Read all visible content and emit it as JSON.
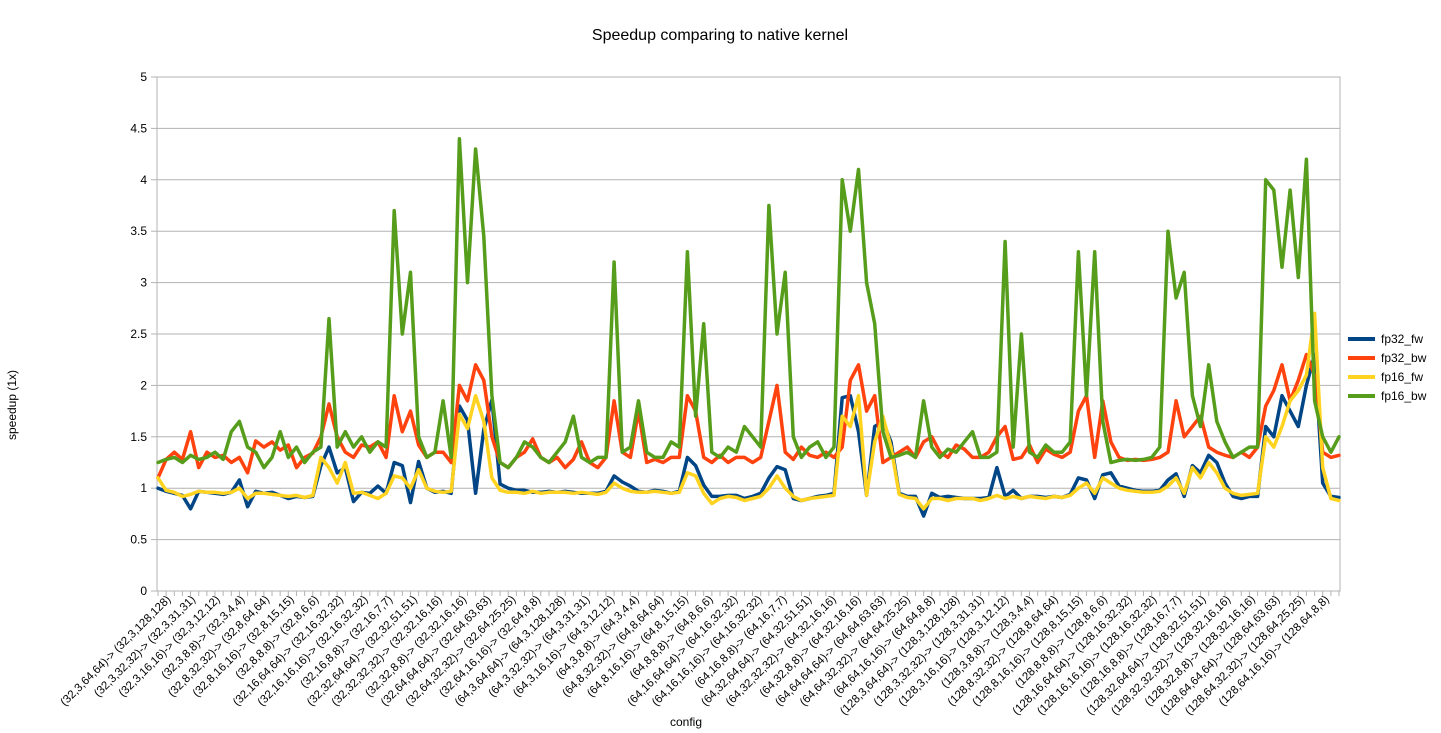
{
  "chart_data": {
    "type": "line",
    "title": "Speedup comparing to native kernel",
    "xlabel": "config",
    "ylabel": "speedup (1x)",
    "ylim": [
      0,
      5
    ],
    "yticks": [
      "0",
      "0.5",
      "1",
      "1.5",
      "2",
      "2.5",
      "3",
      "3.5",
      "4",
      "4.5",
      "5"
    ],
    "grid": "horizontal",
    "legend_position": "right",
    "x_tick_labels": [
      "(32,3,64,64)-> (32,3,128,128)",
      "(32,3,32,32)-> (32,3,31,31)",
      "(32,3,16,16)-> (32,3,12,12)",
      "(32,3,8,8)-> (32,3,4,4)",
      "(32,8,32,32)-> (32,8,64,64)",
      "(32,8,16,16)-> (32,8,15,15)",
      "(32,8,8,8)-> (32,8,6,6)",
      "(32,16,64,64)-> (32,16,32,32)",
      "(32,16,16,16)-> (32,16,32,32)",
      "(32,16,8,8)-> (32,16,7,7)",
      "(32,32,64,64)-> (32,32,51,51)",
      "(32,32,32,32)-> (32,32,16,16)",
      "(32,32,8,8)-> (32,32,16,16)",
      "(32,64,64,64)-> (32,64,63,63)",
      "(32,64,32,32)-> (32,64,25,25)",
      "(32,64,16,16)-> (32,64,8,8)",
      "(64,3,64,64)-> (64,3,128,128)",
      "(64,3,32,32)-> (64,3,31,31)",
      "(64,3,16,16)-> (64,3,12,12)",
      "(64,3,8,8)-> (64,3,4,4)",
      "(64,8,32,32)-> (64,8,64,64)",
      "(64,8,16,16)-> (64,8,15,15)",
      "(64,8,8,8)-> (64,8,6,6)",
      "(64,16,64,64)-> (64,16,32,32)",
      "(64,16,16,16)-> (64,16,32,32)",
      "(64,16,8,8)-> (64,16,7,7)",
      "(64,32,64,64)-> (64,32,51,51)",
      "(64,32,32,32)-> (64,32,16,16)",
      "(64,32,8,8)-> (64,32,16,16)",
      "(64,64,64,64)-> (64,64,63,63)",
      "(64,64,32,32)-> (64,64,25,25)",
      "(64,64,16,16)-> (64,64,8,8)",
      "(128,3,64,64)-> (128,3,128,128)",
      "(128,3,32,32)-> (128,3,31,31)",
      "(128,3,16,16)-> (128,3,12,12)",
      "(128,3,8,8)-> (128,3,4,4)",
      "(128,8,32,32)-> (128,8,64,64)",
      "(128,8,16,16)-> (128,8,15,15)",
      "(128,8,8,8)-> (128,8,6,6)",
      "(128,16,64,64)-> (128,16,32,32)",
      "(128,16,16,16)-> (128,16,32,32)",
      "(128,16,8,8)-> (128,16,7,7)",
      "(128,32,64,64)-> (128,32,51,51)",
      "(128,32,32,32)-> (128,32,16,16)",
      "(128,32,8,8)-> (128,32,16,16)",
      "(128,64,64,64)-> (128,64,63,63)",
      "(128,64,32,32)-> (128,64,25,25)",
      "(128,64,16,16)-> (128,64,8,8)"
    ],
    "series": [
      {
        "name": "fp32_fw",
        "color": "#004586",
        "values": [
          1.0,
          0.97,
          0.95,
          0.93,
          0.8,
          0.97,
          0.96,
          0.95,
          0.94,
          0.96,
          1.08,
          0.82,
          0.97,
          0.95,
          0.96,
          0.93,
          0.9,
          0.92,
          0.91,
          0.92,
          1.22,
          1.4,
          1.15,
          1.2,
          0.87,
          0.96,
          0.95,
          1.02,
          0.95,
          1.25,
          1.22,
          0.86,
          1.26,
          1.0,
          0.96,
          0.97,
          0.95,
          1.8,
          1.66,
          0.95,
          1.57,
          1.86,
          1.04,
          1.0,
          0.98,
          0.98,
          0.96,
          0.96,
          0.97,
          0.96,
          0.97,
          0.96,
          0.95,
          0.95,
          0.95,
          0.97,
          1.12,
          1.06,
          1.02,
          0.97,
          0.96,
          0.98,
          0.97,
          0.95,
          0.97,
          1.3,
          1.22,
          1.03,
          0.92,
          0.92,
          0.93,
          0.93,
          0.9,
          0.92,
          0.95,
          1.1,
          1.21,
          1.18,
          0.9,
          0.88,
          0.9,
          0.92,
          0.93,
          0.95,
          1.88,
          1.9,
          1.55,
          0.93,
          1.6,
          1.65,
          1.45,
          0.95,
          0.92,
          0.92,
          0.73,
          0.95,
          0.91,
          0.92,
          0.91,
          0.9,
          0.9,
          0.9,
          0.91,
          1.2,
          0.92,
          0.98,
          0.9,
          0.92,
          0.92,
          0.91,
          0.92,
          0.91,
          0.94,
          1.1,
          1.08,
          0.9,
          1.13,
          1.15,
          1.02,
          1.0,
          0.98,
          0.97,
          0.97,
          0.98,
          1.08,
          1.14,
          0.92,
          1.22,
          1.15,
          1.32,
          1.25,
          1.05,
          0.92,
          0.9,
          0.92,
          0.92,
          1.6,
          1.5,
          1.9,
          1.75,
          1.6,
          2.0,
          2.3,
          1.05,
          0.92,
          0.91
        ]
      },
      {
        "name": "fp32_bw",
        "color": "#ff420e",
        "values": [
          1.1,
          1.28,
          1.35,
          1.28,
          1.55,
          1.2,
          1.35,
          1.3,
          1.32,
          1.25,
          1.3,
          1.15,
          1.46,
          1.4,
          1.45,
          1.37,
          1.42,
          1.2,
          1.3,
          1.34,
          1.5,
          1.82,
          1.5,
          1.35,
          1.3,
          1.42,
          1.4,
          1.45,
          1.3,
          1.9,
          1.55,
          1.75,
          1.42,
          1.3,
          1.35,
          1.35,
          1.25,
          2.0,
          1.85,
          2.2,
          2.05,
          1.5,
          1.25,
          1.2,
          1.3,
          1.35,
          1.48,
          1.3,
          1.25,
          1.3,
          1.2,
          1.28,
          1.45,
          1.25,
          1.2,
          1.3,
          1.85,
          1.35,
          1.3,
          1.75,
          1.25,
          1.28,
          1.25,
          1.3,
          1.3,
          1.9,
          1.75,
          1.3,
          1.25,
          1.32,
          1.25,
          1.3,
          1.3,
          1.25,
          1.3,
          1.65,
          2.0,
          1.35,
          1.28,
          1.4,
          1.32,
          1.3,
          1.35,
          1.3,
          1.4,
          2.05,
          2.2,
          1.75,
          1.9,
          1.25,
          1.3,
          1.35,
          1.4,
          1.3,
          1.45,
          1.5,
          1.35,
          1.3,
          1.42,
          1.38,
          1.3,
          1.3,
          1.35,
          1.5,
          1.6,
          1.28,
          1.3,
          1.42,
          1.25,
          1.38,
          1.33,
          1.3,
          1.35,
          1.75,
          1.9,
          1.3,
          1.85,
          1.45,
          1.3,
          1.27,
          1.28,
          1.27,
          1.28,
          1.3,
          1.35,
          1.85,
          1.5,
          1.6,
          1.7,
          1.4,
          1.35,
          1.32,
          1.3,
          1.35,
          1.3,
          1.4,
          1.8,
          1.95,
          2.2,
          1.85,
          2.05,
          2.3,
          2.1,
          1.35,
          1.3,
          1.32
        ]
      },
      {
        "name": "fp16_fw",
        "color": "#ffd320",
        "values": [
          1.1,
          0.98,
          0.96,
          0.92,
          0.94,
          0.97,
          0.96,
          0.96,
          0.95,
          0.96,
          1.0,
          0.9,
          0.95,
          0.95,
          0.94,
          0.93,
          0.92,
          0.93,
          0.91,
          0.93,
          1.3,
          1.2,
          1.05,
          1.25,
          0.95,
          0.96,
          0.93,
          0.9,
          0.95,
          1.12,
          1.1,
          1.0,
          1.18,
          1.0,
          0.97,
          0.96,
          0.97,
          1.72,
          1.58,
          1.9,
          1.65,
          1.1,
          0.98,
          0.96,
          0.96,
          0.95,
          0.97,
          0.95,
          0.96,
          0.96,
          0.96,
          0.95,
          0.96,
          0.95,
          0.94,
          0.96,
          1.05,
          1.0,
          0.97,
          0.96,
          0.96,
          0.97,
          0.96,
          0.95,
          0.96,
          1.15,
          1.12,
          0.95,
          0.85,
          0.9,
          0.92,
          0.91,
          0.88,
          0.9,
          0.92,
          1.0,
          1.12,
          1.0,
          0.92,
          0.88,
          0.9,
          0.91,
          0.92,
          0.93,
          1.7,
          1.6,
          1.9,
          0.93,
          1.45,
          1.7,
          1.4,
          0.94,
          0.91,
          0.9,
          0.8,
          0.9,
          0.9,
          0.88,
          0.9,
          0.9,
          0.9,
          0.88,
          0.9,
          0.93,
          0.9,
          0.92,
          0.9,
          0.92,
          0.91,
          0.9,
          0.92,
          0.91,
          0.93,
          1.0,
          1.05,
          0.95,
          1.1,
          1.05,
          1.0,
          0.98,
          0.97,
          0.96,
          0.96,
          0.97,
          1.02,
          1.1,
          0.95,
          1.2,
          1.1,
          1.25,
          1.15,
          1.0,
          0.95,
          0.93,
          0.94,
          0.95,
          1.5,
          1.4,
          1.6,
          1.85,
          1.95,
          2.1,
          2.7,
          1.2,
          0.9,
          0.88
        ]
      },
      {
        "name": "fp16_bw",
        "color": "#579d1c",
        "values": [
          1.25,
          1.28,
          1.3,
          1.25,
          1.32,
          1.28,
          1.3,
          1.35,
          1.28,
          1.55,
          1.65,
          1.4,
          1.35,
          1.2,
          1.3,
          1.55,
          1.3,
          1.4,
          1.25,
          1.35,
          1.4,
          2.65,
          1.4,
          1.55,
          1.4,
          1.5,
          1.35,
          1.45,
          1.4,
          3.7,
          2.5,
          3.1,
          1.5,
          1.3,
          1.35,
          1.85,
          1.3,
          4.4,
          3.0,
          4.3,
          3.45,
          1.9,
          1.25,
          1.2,
          1.3,
          1.45,
          1.4,
          1.3,
          1.25,
          1.35,
          1.45,
          1.7,
          1.3,
          1.25,
          1.3,
          1.3,
          3.2,
          1.35,
          1.4,
          1.85,
          1.35,
          1.3,
          1.3,
          1.45,
          1.4,
          3.3,
          1.7,
          2.6,
          1.35,
          1.3,
          1.4,
          1.35,
          1.6,
          1.5,
          1.4,
          3.75,
          2.5,
          3.1,
          1.5,
          1.3,
          1.4,
          1.45,
          1.3,
          1.4,
          4.0,
          3.5,
          4.1,
          3.0,
          2.6,
          1.55,
          1.3,
          1.32,
          1.35,
          1.3,
          1.85,
          1.4,
          1.3,
          1.38,
          1.35,
          1.45,
          1.55,
          1.3,
          1.3,
          1.35,
          3.4,
          1.4,
          2.5,
          1.35,
          1.3,
          1.42,
          1.35,
          1.35,
          1.45,
          3.3,
          1.9,
          3.3,
          1.65,
          1.25,
          1.27,
          1.28,
          1.27,
          1.28,
          1.3,
          1.4,
          3.5,
          2.85,
          3.1,
          1.9,
          1.6,
          2.2,
          1.65,
          1.45,
          1.3,
          1.35,
          1.4,
          1.4,
          4.0,
          3.9,
          3.15,
          3.9,
          3.05,
          4.2,
          1.85,
          1.5,
          1.35,
          1.5
        ]
      }
    ]
  }
}
